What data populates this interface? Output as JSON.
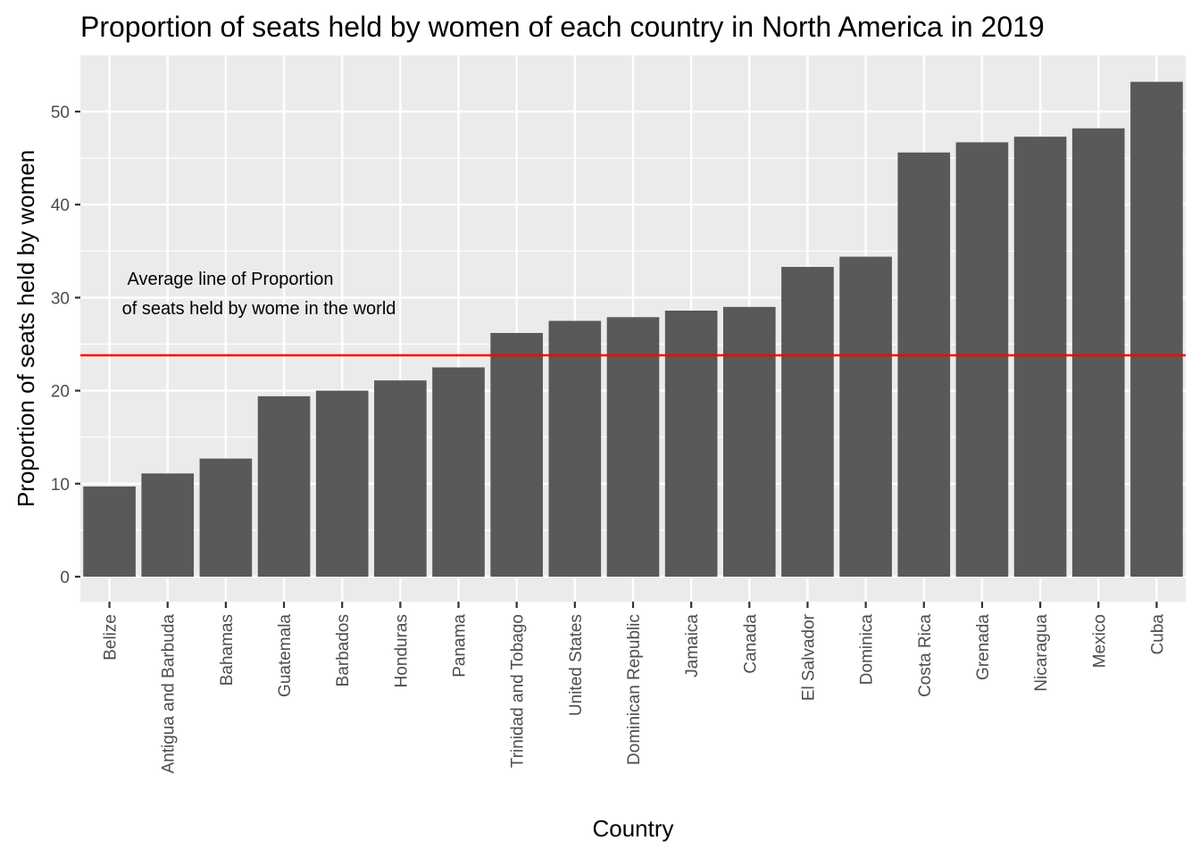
{
  "chart_data": {
    "type": "bar",
    "title": "Proportion of seats held by women of each country in North America in 2019",
    "xlabel": "Country",
    "ylabel": "Proportion of seats held by women",
    "categories": [
      "Belize",
      "Antigua and Barbuda",
      "Bahamas",
      "Guatemala",
      "Barbados",
      "Honduras",
      "Panama",
      "Trinidad and Tobago",
      "United States",
      "Dominican Republic",
      "Jamaica",
      "Canada",
      "El Salvador",
      "Dominica",
      "Costa Rica",
      "Grenada",
      "Nicaragua",
      "Mexico",
      "Cuba"
    ],
    "values": [
      9.7,
      11.1,
      12.7,
      19.4,
      20.0,
      21.1,
      22.5,
      26.2,
      27.5,
      27.9,
      28.6,
      29.0,
      33.3,
      34.4,
      45.6,
      46.7,
      47.3,
      48.2,
      53.2
    ],
    "ylim": [
      0,
      55
    ],
    "yticks": [
      0,
      10,
      20,
      30,
      40,
      50
    ],
    "reference_line": {
      "value": 23.8,
      "color": "#ff0000",
      "annotation": [
        "Average line of Proportion",
        "of seats held by wome in the world"
      ]
    },
    "grid": true,
    "bar_color": "#595959",
    "panel_color": "#ebebeb",
    "grid_color": "#ffffff"
  }
}
